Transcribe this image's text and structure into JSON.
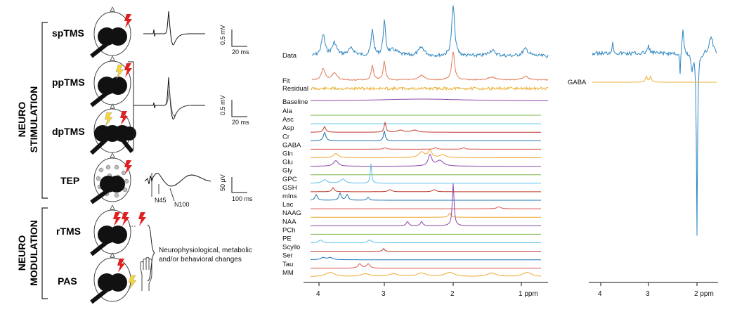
{
  "left_panel": {
    "group_stimulation": "NEURO\nSTIMULATION",
    "group_modulation": "NEURO\nMODULATION",
    "protocols": [
      "spTMS",
      "ppTMS",
      "dpTMS",
      "TEP",
      "rTMS",
      "PAS"
    ],
    "scales": {
      "sp_v": "0.5 mV",
      "sp_t": "20 ms",
      "pp_v": "0.5 mV",
      "pp_t": "20 ms",
      "tep_v": "50 µV",
      "tep_t": "100 ms"
    },
    "tep_peaks": [
      "N45",
      "N100"
    ],
    "outcome_text": [
      "Neurophysiological, metabolic",
      "and/or behavioral changes"
    ]
  },
  "spectra": {
    "top_labels": [
      "Data",
      "Fit",
      "Residual"
    ],
    "baseline_label": "Baseline",
    "metabolites": [
      {
        "name": "Ala",
        "color": "#7ab648"
      },
      {
        "name": "Asc",
        "color": "#5bc0eb"
      },
      {
        "name": "Asp",
        "color": "#c0392b"
      },
      {
        "name": "Cr",
        "color": "#1f77b4"
      },
      {
        "name": "GABA",
        "color": "#d9534f"
      },
      {
        "name": "Gln",
        "color": "#f0a830"
      },
      {
        "name": "Glu",
        "color": "#8e44ad"
      },
      {
        "name": "Gly",
        "color": "#7ab648"
      },
      {
        "name": "GPC",
        "color": "#5bc0eb"
      },
      {
        "name": "GSH",
        "color": "#c0392b"
      },
      {
        "name": "mIns",
        "color": "#1f77b4"
      },
      {
        "name": "Lac",
        "color": "#d9534f"
      },
      {
        "name": "NAAG",
        "color": "#f0a830"
      },
      {
        "name": "NAA",
        "color": "#8e44ad"
      },
      {
        "name": "PCh",
        "color": "#7ab648"
      },
      {
        "name": "PE",
        "color": "#5bc0eb"
      },
      {
        "name": "Scyllo",
        "color": "#c0392b"
      },
      {
        "name": "Ser",
        "color": "#1f77b4"
      },
      {
        "name": "Tau",
        "color": "#d9534f"
      },
      {
        "name": "MM",
        "color": "#f0a830"
      }
    ],
    "colors": {
      "data": "#2e86c1",
      "fit": "#e07b5a",
      "residual": "#e8b030",
      "baseline": "#8e44ad"
    },
    "axis_ticks": [
      "4",
      "3",
      "2",
      "1 ppm"
    ]
  },
  "gaba_panel": {
    "label": "GABA",
    "axis_ticks": [
      "4",
      "3",
      "2 ppm"
    ]
  }
}
